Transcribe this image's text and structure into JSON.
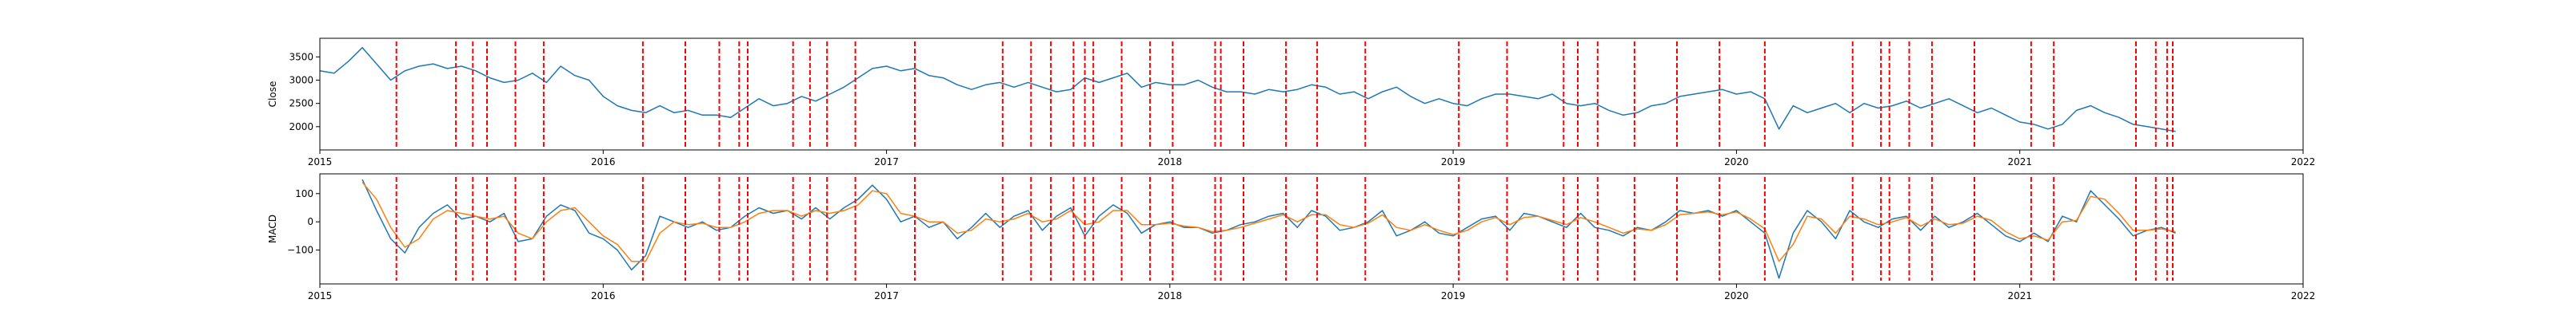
{
  "chart_data": [
    {
      "type": "line",
      "ylabel": "Close",
      "xlim": [
        2015.0,
        2022.0
      ],
      "ylim": [
        1500,
        3900
      ],
      "x_ticks": [
        2015,
        2016,
        2017,
        2018,
        2019,
        2020,
        2021,
        2022
      ],
      "x_tick_labels": [
        "2015",
        "2016",
        "2017",
        "2018",
        "2019",
        "2020",
        "2021",
        "2022"
      ],
      "y_ticks": [
        2000,
        2500,
        3000,
        3500
      ],
      "y_tick_labels": [
        "2000",
        "2500",
        "3000",
        "3500"
      ],
      "grid": false,
      "series": [
        {
          "color": "#1f77b4",
          "x": [
            2015.0,
            2015.05,
            2015.1,
            2015.15,
            2015.2,
            2015.25,
            2015.3,
            2015.35,
            2015.4,
            2015.45,
            2015.5,
            2015.55,
            2015.6,
            2015.65,
            2015.7,
            2015.75,
            2015.8,
            2015.85,
            2015.9,
            2015.95,
            2016.0,
            2016.05,
            2016.1,
            2016.15,
            2016.2,
            2016.25,
            2016.3,
            2016.35,
            2016.4,
            2016.45,
            2016.5,
            2016.55,
            2016.6,
            2016.65,
            2016.7,
            2016.75,
            2016.8,
            2016.85,
            2016.9,
            2016.95,
            2017.0,
            2017.05,
            2017.1,
            2017.15,
            2017.2,
            2017.25,
            2017.3,
            2017.35,
            2017.4,
            2017.45,
            2017.5,
            2017.55,
            2017.6,
            2017.65,
            2017.7,
            2017.75,
            2017.8,
            2017.85,
            2017.9,
            2017.95,
            2018.0,
            2018.05,
            2018.1,
            2018.15,
            2018.2,
            2018.25,
            2018.3,
            2018.35,
            2018.4,
            2018.45,
            2018.5,
            2018.55,
            2018.6,
            2018.65,
            2018.7,
            2018.75,
            2018.8,
            2018.85,
            2018.9,
            2018.95,
            2019.0,
            2019.05,
            2019.1,
            2019.15,
            2019.2,
            2019.25,
            2019.3,
            2019.35,
            2019.4,
            2019.45,
            2019.5,
            2019.55,
            2019.6,
            2019.65,
            2019.7,
            2019.75,
            2019.8,
            2019.85,
            2019.9,
            2019.95,
            2020.0,
            2020.05,
            2020.1,
            2020.15,
            2020.2,
            2020.25,
            2020.3,
            2020.35,
            2020.4,
            2020.45,
            2020.5,
            2020.55,
            2020.6,
            2020.65,
            2020.7,
            2020.75,
            2020.8,
            2020.85,
            2020.9,
            2020.95,
            2021.0,
            2021.05,
            2021.1,
            2021.15,
            2021.2,
            2021.25,
            2021.3,
            2021.35,
            2021.4,
            2021.45,
            2021.5,
            2021.55
          ],
          "y": [
            3200,
            3150,
            3400,
            3700,
            3350,
            3000,
            3200,
            3300,
            3350,
            3250,
            3300,
            3200,
            3050,
            2950,
            3000,
            3150,
            2950,
            3300,
            3100,
            3000,
            2650,
            2450,
            2350,
            2300,
            2450,
            2300,
            2350,
            2250,
            2250,
            2200,
            2400,
            2600,
            2450,
            2500,
            2650,
            2550,
            2700,
            2850,
            3050,
            3250,
            3300,
            3200,
            3250,
            3100,
            3050,
            2900,
            2800,
            2900,
            2950,
            2850,
            2950,
            2850,
            2750,
            2800,
            3050,
            2950,
            3050,
            3150,
            2850,
            2950,
            2900,
            2900,
            3000,
            2850,
            2750,
            2750,
            2700,
            2800,
            2750,
            2800,
            2900,
            2850,
            2700,
            2750,
            2600,
            2750,
            2850,
            2650,
            2500,
            2600,
            2500,
            2450,
            2600,
            2700,
            2700,
            2650,
            2600,
            2700,
            2500,
            2450,
            2500,
            2350,
            2250,
            2300,
            2450,
            2500,
            2650,
            2700,
            2750,
            2800,
            2700,
            2750,
            2600,
            1950,
            2450,
            2300,
            2400,
            2500,
            2300,
            2500,
            2400,
            2450,
            2550,
            2400,
            2500,
            2600,
            2450,
            2300,
            2400,
            2250,
            2100,
            2050,
            1950,
            2050,
            2350,
            2450,
            2300,
            2200,
            2050,
            2000,
            1950,
            1900
          ]
        }
      ],
      "event_lines_x": [
        2015.27,
        2015.48,
        2015.54,
        2015.59,
        2015.69,
        2015.79,
        2016.14,
        2016.29,
        2016.41,
        2016.48,
        2016.51,
        2016.67,
        2016.73,
        2016.79,
        2016.89,
        2017.1,
        2017.41,
        2017.51,
        2017.58,
        2017.66,
        2017.7,
        2017.73,
        2017.83,
        2017.93,
        2018.01,
        2018.16,
        2018.18,
        2018.26,
        2018.41,
        2018.52,
        2018.69,
        2019.02,
        2019.19,
        2019.39,
        2019.44,
        2019.51,
        2019.64,
        2019.79,
        2019.94,
        2020.1,
        2020.41,
        2020.51,
        2020.54,
        2020.61,
        2020.69,
        2020.84,
        2021.04,
        2021.12,
        2021.41,
        2021.48,
        2021.52,
        2021.54
      ],
      "event_color": "#ff0000"
    },
    {
      "type": "line",
      "ylabel": "MACD",
      "xlim": [
        2015.0,
        2022.0
      ],
      "ylim": [
        -220,
        170
      ],
      "x_ticks": [
        2015,
        2016,
        2017,
        2018,
        2019,
        2020,
        2021,
        2022
      ],
      "x_tick_labels": [
        "2015",
        "2016",
        "2017",
        "2018",
        "2019",
        "2020",
        "2021",
        "2022"
      ],
      "y_ticks": [
        -100,
        0,
        100
      ],
      "y_tick_labels": [
        "−100",
        "0",
        "100"
      ],
      "grid": false,
      "series": [
        {
          "color": "#1f77b4",
          "x": [
            2015.15,
            2015.2,
            2015.25,
            2015.3,
            2015.35,
            2015.4,
            2015.45,
            2015.5,
            2015.55,
            2015.6,
            2015.65,
            2015.7,
            2015.75,
            2015.8,
            2015.85,
            2015.9,
            2015.95,
            2016.0,
            2016.05,
            2016.1,
            2016.15,
            2016.2,
            2016.25,
            2016.3,
            2016.35,
            2016.4,
            2016.45,
            2016.5,
            2016.55,
            2016.6,
            2016.65,
            2016.7,
            2016.75,
            2016.8,
            2016.85,
            2016.9,
            2016.95,
            2017.0,
            2017.05,
            2017.1,
            2017.15,
            2017.2,
            2017.25,
            2017.3,
            2017.35,
            2017.4,
            2017.45,
            2017.5,
            2017.55,
            2017.6,
            2017.65,
            2017.7,
            2017.75,
            2017.8,
            2017.85,
            2017.9,
            2017.95,
            2018.0,
            2018.05,
            2018.1,
            2018.15,
            2018.2,
            2018.25,
            2018.3,
            2018.35,
            2018.4,
            2018.45,
            2018.5,
            2018.55,
            2018.6,
            2018.65,
            2018.7,
            2018.75,
            2018.8,
            2018.85,
            2018.9,
            2018.95,
            2019.0,
            2019.05,
            2019.1,
            2019.15,
            2019.2,
            2019.25,
            2019.3,
            2019.35,
            2019.4,
            2019.45,
            2019.5,
            2019.55,
            2019.6,
            2019.65,
            2019.7,
            2019.75,
            2019.8,
            2019.85,
            2019.9,
            2019.95,
            2020.0,
            2020.05,
            2020.1,
            2020.15,
            2020.2,
            2020.25,
            2020.3,
            2020.35,
            2020.4,
            2020.45,
            2020.5,
            2020.55,
            2020.6,
            2020.65,
            2020.7,
            2020.75,
            2020.8,
            2020.85,
            2020.9,
            2020.95,
            2021.0,
            2021.05,
            2021.1,
            2021.15,
            2021.2,
            2021.25,
            2021.3,
            2021.35,
            2021.4,
            2021.45,
            2021.5,
            2021.55
          ],
          "y": [
            150,
            40,
            -60,
            -110,
            -20,
            30,
            60,
            10,
            20,
            0,
            30,
            -70,
            -60,
            20,
            60,
            40,
            -40,
            -60,
            -100,
            -170,
            -120,
            20,
            0,
            -20,
            0,
            -30,
            -20,
            20,
            50,
            30,
            40,
            10,
            50,
            10,
            50,
            80,
            130,
            80,
            0,
            20,
            -20,
            0,
            -60,
            -20,
            30,
            -20,
            20,
            40,
            -30,
            20,
            50,
            -50,
            20,
            60,
            30,
            -40,
            -10,
            0,
            -20,
            -20,
            -40,
            -30,
            -10,
            0,
            20,
            30,
            -20,
            40,
            20,
            -30,
            -20,
            0,
            40,
            -50,
            -30,
            0,
            -40,
            -50,
            -20,
            10,
            20,
            -30,
            30,
            20,
            0,
            -20,
            30,
            -20,
            -30,
            -50,
            -20,
            -30,
            0,
            40,
            30,
            40,
            20,
            40,
            0,
            -40,
            -200,
            -40,
            40,
            0,
            -60,
            40,
            0,
            -20,
            10,
            20,
            -30,
            20,
            -20,
            0,
            30,
            -10,
            -50,
            -70,
            -40,
            -70,
            20,
            0,
            110,
            60,
            10,
            -50,
            -30,
            -20,
            -40
          ]
        },
        {
          "color": "#ff7f0e",
          "x": [
            2015.15,
            2015.2,
            2015.25,
            2015.3,
            2015.35,
            2015.4,
            2015.45,
            2015.5,
            2015.55,
            2015.6,
            2015.65,
            2015.7,
            2015.75,
            2015.8,
            2015.85,
            2015.9,
            2015.95,
            2016.0,
            2016.05,
            2016.1,
            2016.15,
            2016.2,
            2016.25,
            2016.3,
            2016.35,
            2016.4,
            2016.45,
            2016.5,
            2016.55,
            2016.6,
            2016.65,
            2016.7,
            2016.75,
            2016.8,
            2016.85,
            2016.9,
            2016.95,
            2017.0,
            2017.05,
            2017.1,
            2017.15,
            2017.2,
            2017.25,
            2017.3,
            2017.35,
            2017.4,
            2017.45,
            2017.5,
            2017.55,
            2017.6,
            2017.65,
            2017.7,
            2017.75,
            2017.8,
            2017.85,
            2017.9,
            2017.95,
            2018.0,
            2018.05,
            2018.1,
            2018.15,
            2018.2,
            2018.25,
            2018.3,
            2018.35,
            2018.4,
            2018.45,
            2018.5,
            2018.55,
            2018.6,
            2018.65,
            2018.7,
            2018.75,
            2018.8,
            2018.85,
            2018.9,
            2018.95,
            2019.0,
            2019.05,
            2019.1,
            2019.15,
            2019.2,
            2019.25,
            2019.3,
            2019.35,
            2019.4,
            2019.45,
            2019.5,
            2019.55,
            2019.6,
            2019.65,
            2019.7,
            2019.75,
            2019.8,
            2019.85,
            2019.9,
            2019.95,
            2020.0,
            2020.05,
            2020.1,
            2020.15,
            2020.2,
            2020.25,
            2020.3,
            2020.35,
            2020.4,
            2020.45,
            2020.5,
            2020.55,
            2020.6,
            2020.65,
            2020.7,
            2020.75,
            2020.8,
            2020.85,
            2020.9,
            2020.95,
            2021.0,
            2021.05,
            2021.1,
            2021.15,
            2021.2,
            2021.25,
            2021.3,
            2021.35,
            2021.4,
            2021.45,
            2021.5,
            2021.55
          ],
          "y": [
            140,
            80,
            -20,
            -90,
            -60,
            10,
            40,
            30,
            20,
            10,
            20,
            -40,
            -60,
            0,
            40,
            50,
            0,
            -50,
            -80,
            -140,
            -140,
            -40,
            0,
            -10,
            -5,
            -20,
            -20,
            0,
            30,
            40,
            40,
            20,
            40,
            30,
            40,
            60,
            110,
            100,
            30,
            20,
            0,
            0,
            -40,
            -30,
            10,
            0,
            10,
            30,
            0,
            10,
            40,
            -10,
            0,
            40,
            40,
            -10,
            -10,
            -5,
            -15,
            -20,
            -35,
            -30,
            -20,
            -5,
            10,
            25,
            0,
            25,
            25,
            -10,
            -20,
            -5,
            25,
            -20,
            -30,
            -10,
            -30,
            -45,
            -30,
            0,
            15,
            -10,
            15,
            20,
            5,
            -10,
            15,
            0,
            -20,
            -40,
            -25,
            -30,
            -10,
            25,
            30,
            35,
            25,
            35,
            10,
            -25,
            -140,
            -80,
            20,
            10,
            -40,
            20,
            10,
            -10,
            0,
            15,
            -15,
            10,
            -10,
            -5,
            20,
            5,
            -35,
            -60,
            -50,
            -65,
            0,
            5,
            90,
            80,
            30,
            -30,
            -30,
            -25,
            -35
          ]
        }
      ],
      "event_lines_x": [
        2015.27,
        2015.48,
        2015.54,
        2015.59,
        2015.69,
        2015.79,
        2016.14,
        2016.29,
        2016.41,
        2016.48,
        2016.51,
        2016.67,
        2016.73,
        2016.79,
        2016.89,
        2017.1,
        2017.41,
        2017.51,
        2017.58,
        2017.66,
        2017.7,
        2017.73,
        2017.83,
        2017.93,
        2018.01,
        2018.16,
        2018.18,
        2018.26,
        2018.41,
        2018.52,
        2018.69,
        2019.02,
        2019.19,
        2019.39,
        2019.44,
        2019.51,
        2019.64,
        2019.79,
        2019.94,
        2020.1,
        2020.41,
        2020.51,
        2020.54,
        2020.61,
        2020.69,
        2020.84,
        2021.04,
        2021.12,
        2021.41,
        2021.48,
        2021.52,
        2021.54
      ],
      "event_color": "#ff0000"
    }
  ]
}
